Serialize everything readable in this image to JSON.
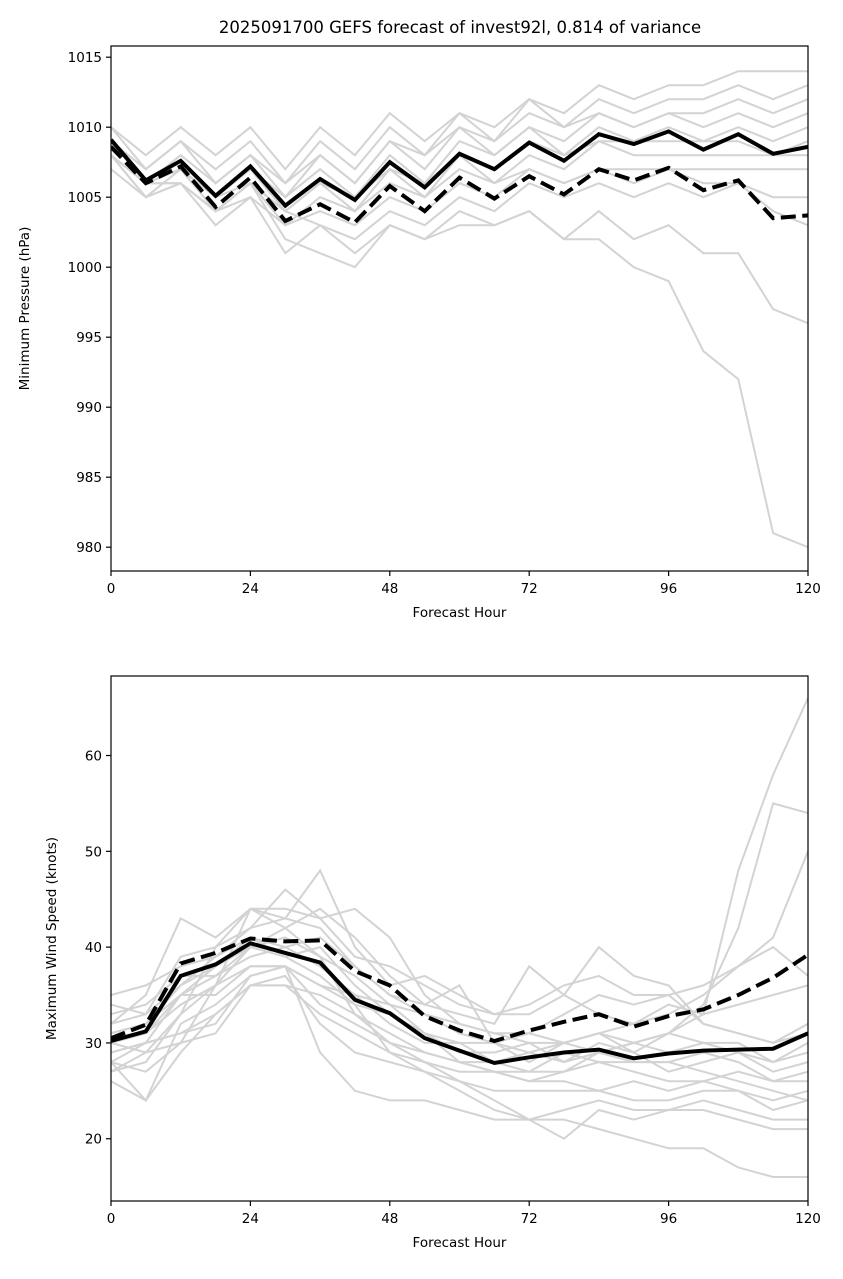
{
  "chart_data": [
    {
      "type": "line",
      "title": "2025091700 GEFS forecast of invest92l, 0.814 of variance",
      "xlabel": "Forecast Hour",
      "ylabel": "Minimum Pressure (hPa)",
      "xlim": [
        0,
        120
      ],
      "ylim": [
        978.3,
        1015.8
      ],
      "xticks": [
        0,
        24,
        48,
        72,
        96,
        120
      ],
      "yticks": [
        980,
        985,
        990,
        995,
        1000,
        1005,
        1010,
        1015
      ],
      "x": [
        0,
        6,
        12,
        18,
        24,
        30,
        36,
        42,
        48,
        54,
        60,
        66,
        72,
        78,
        84,
        90,
        96,
        102,
        108,
        114,
        120
      ],
      "grid": false,
      "legend": "none",
      "colors": {
        "members": "#d3d3d3",
        "mean": "#000000",
        "weighted": "#000000"
      },
      "series": [
        {
          "name": "member-01",
          "role": "member",
          "values": [
            1010,
            1008,
            1010,
            1008,
            1010,
            1007,
            1010,
            1008,
            1011,
            1009,
            1011,
            1010,
            1012,
            1011,
            1013,
            1012,
            1013,
            1013,
            1014,
            1014,
            1014
          ]
        },
        {
          "name": "member-02",
          "role": "member",
          "values": [
            1010,
            1007,
            1009,
            1007,
            1009,
            1006,
            1009,
            1007,
            1010,
            1008,
            1011,
            1009,
            1012,
            1010,
            1012,
            1011,
            1012,
            1012,
            1013,
            1012,
            1013
          ]
        },
        {
          "name": "member-03",
          "role": "member",
          "values": [
            1009,
            1007,
            1009,
            1006,
            1008,
            1006,
            1008,
            1006,
            1009,
            1008,
            1010,
            1009,
            1011,
            1010,
            1011,
            1010,
            1011,
            1011,
            1012,
            1011,
            1012
          ]
        },
        {
          "name": "member-04",
          "role": "member",
          "values": [
            1009,
            1006,
            1008,
            1006,
            1008,
            1005,
            1008,
            1006,
            1009,
            1007,
            1010,
            1008,
            1010,
            1009,
            1011,
            1010,
            1011,
            1010,
            1011,
            1010,
            1011
          ]
        },
        {
          "name": "member-05",
          "role": "member",
          "values": [
            1009,
            1006,
            1007,
            1005,
            1007,
            1005,
            1007,
            1005,
            1008,
            1006,
            1009,
            1008,
            1010,
            1008,
            1010,
            1009,
            1010,
            1009,
            1010,
            1009,
            1010
          ]
        },
        {
          "name": "member-06",
          "role": "member",
          "values": [
            1008,
            1006,
            1007,
            1005,
            1007,
            1004,
            1006,
            1005,
            1007,
            1006,
            1008,
            1007,
            1009,
            1008,
            1009,
            1009,
            1009,
            1009,
            1009,
            1008,
            1009
          ]
        },
        {
          "name": "member-07",
          "role": "member",
          "values": [
            1008,
            1005,
            1007,
            1004,
            1006,
            1004,
            1006,
            1004,
            1007,
            1005,
            1008,
            1006,
            1008,
            1007,
            1009,
            1008,
            1008,
            1008,
            1008,
            1008,
            1008
          ]
        },
        {
          "name": "member-08",
          "role": "member",
          "values": [
            1008,
            1005,
            1006,
            1004,
            1006,
            1003,
            1005,
            1004,
            1006,
            1005,
            1007,
            1006,
            1007,
            1006,
            1007,
            1007,
            1007,
            1007,
            1007,
            1007,
            1007
          ]
        },
        {
          "name": "member-09",
          "role": "member",
          "values": [
            1007,
            1005,
            1006,
            1003,
            1005,
            1003,
            1004,
            1003,
            1005,
            1004,
            1006,
            1005,
            1007,
            1006,
            1007,
            1006,
            1007,
            1006,
            1006,
            1005,
            1005
          ]
        },
        {
          "name": "member-10",
          "role": "member",
          "values": [
            1008,
            1006,
            1006,
            1004,
            1005,
            1001,
            1003,
            1002,
            1004,
            1003,
            1005,
            1004,
            1006,
            1005,
            1006,
            1005,
            1006,
            1005,
            1006,
            1004,
            1003
          ]
        },
        {
          "name": "member-11",
          "role": "member",
          "values": [
            1009,
            1006,
            1007,
            1005,
            1006,
            1004,
            1003,
            1001,
            1003,
            1002,
            1004,
            1003,
            1004,
            1002,
            1002,
            1000,
            999,
            994,
            992,
            981,
            980
          ]
        },
        {
          "name": "member-12",
          "role": "member",
          "values": [
            1008,
            1006,
            1006,
            1004,
            1006,
            1002,
            1001,
            1000,
            1003,
            1002,
            1003,
            1003,
            1004,
            1002,
            1004,
            1002,
            1003,
            1001,
            1001,
            997,
            996
          ]
        }
      ],
      "mean": {
        "name": "ensemble-mean",
        "style": "solid",
        "values": [
          1009.1,
          1006.2,
          1007.6,
          1005.1,
          1007.2,
          1004.4,
          1006.3,
          1004.8,
          1007.5,
          1005.7,
          1008.1,
          1007.0,
          1008.9,
          1007.6,
          1009.5,
          1008.8,
          1009.7,
          1008.4,
          1009.5,
          1008.1,
          1008.6
        ]
      },
      "weighted": {
        "name": "weighted-mean",
        "style": "dashed",
        "values": [
          1008.6,
          1006.0,
          1007.2,
          1004.3,
          1006.4,
          1003.3,
          1004.5,
          1003.2,
          1005.8,
          1004.0,
          1006.4,
          1004.9,
          1006.5,
          1005.2,
          1007.0,
          1006.2,
          1007.1,
          1005.5,
          1006.2,
          1003.5,
          1003.7
        ]
      }
    },
    {
      "type": "line",
      "title": "",
      "xlabel": "Forecast Hour",
      "ylabel": "Maximum Wind Speed (knots)",
      "xlim": [
        0,
        120
      ],
      "ylim": [
        13.5,
        68.3
      ],
      "xticks": [
        0,
        24,
        48,
        72,
        96,
        120
      ],
      "yticks": [
        20,
        30,
        40,
        50,
        60
      ],
      "x": [
        0,
        6,
        12,
        18,
        24,
        30,
        36,
        42,
        48,
        54,
        60,
        66,
        72,
        78,
        84,
        90,
        96,
        102,
        108,
        114,
        120
      ],
      "grid": false,
      "legend": "none",
      "colors": {
        "members": "#d3d3d3",
        "mean": "#000000",
        "weighted": "#000000"
      },
      "series": [
        {
          "name": "member-01",
          "role": "member",
          "values": [
            30,
            31,
            35,
            38,
            40,
            39,
            40,
            36,
            33,
            31,
            29,
            29,
            30,
            30,
            31,
            29,
            31,
            33,
            48,
            58,
            66
          ]
        },
        {
          "name": "member-02",
          "role": "member",
          "values": [
            31,
            32,
            36,
            39,
            41,
            40,
            38,
            35,
            32,
            30,
            30,
            30,
            31,
            30,
            29,
            30,
            31,
            34,
            42,
            55,
            54
          ]
        },
        {
          "name": "member-03",
          "role": "member",
          "values": [
            29,
            30,
            35,
            37,
            40,
            41,
            39,
            37,
            34,
            31,
            30,
            28,
            29,
            30,
            31,
            32,
            33,
            35,
            38,
            41,
            50
          ]
        },
        {
          "name": "member-04",
          "role": "member",
          "values": [
            34,
            33,
            39,
            40,
            42,
            43,
            42,
            38,
            35,
            33,
            32,
            31,
            31,
            33,
            35,
            34,
            35,
            36,
            38,
            40,
            37
          ]
        },
        {
          "name": "member-05",
          "role": "member",
          "values": [
            32,
            35,
            43,
            41,
            44,
            42,
            44,
            41,
            37,
            34,
            33,
            32,
            38,
            35,
            33,
            32,
            34,
            33,
            34,
            35,
            36
          ]
        },
        {
          "name": "member-06",
          "role": "member",
          "values": [
            35,
            36,
            38,
            39,
            42,
            46,
            43,
            39,
            38,
            36,
            34,
            33,
            33,
            35,
            40,
            37,
            36,
            32,
            31,
            30,
            32
          ]
        },
        {
          "name": "member-07",
          "role": "member",
          "values": [
            28,
            27,
            30,
            36,
            44,
            43,
            48,
            40,
            36,
            37,
            35,
            33,
            34,
            36,
            37,
            35,
            35,
            32,
            31,
            30,
            31
          ]
        },
        {
          "name": "member-08",
          "role": "member",
          "values": [
            27,
            28,
            33,
            40,
            44,
            44,
            43,
            44,
            41,
            35,
            32,
            31,
            30,
            28,
            29,
            30,
            31,
            30,
            30,
            28,
            30
          ]
        },
        {
          "name": "member-09",
          "role": "member",
          "values": [
            30,
            29,
            33,
            36,
            38,
            38,
            36,
            35,
            34,
            33,
            31,
            30,
            28,
            30,
            31,
            30,
            29,
            30,
            29,
            28,
            29
          ]
        },
        {
          "name": "member-10",
          "role": "member",
          "values": [
            33,
            34,
            37,
            37,
            39,
            40,
            41,
            38,
            35,
            34,
            36,
            30,
            29,
            28,
            30,
            29,
            27,
            28,
            29,
            27,
            28
          ]
        },
        {
          "name": "member-11",
          "role": "member",
          "values": [
            28,
            24,
            32,
            34,
            37,
            38,
            34,
            32,
            30,
            29,
            28,
            28,
            27,
            29,
            28,
            28,
            28,
            29,
            28,
            26,
            27
          ]
        },
        {
          "name": "member-12",
          "role": "member",
          "values": [
            26,
            24,
            29,
            33,
            36,
            36,
            35,
            33,
            31,
            29,
            28,
            27,
            27,
            27,
            28,
            27,
            26,
            26,
            27,
            26,
            26
          ]
        },
        {
          "name": "member-13",
          "role": "member",
          "values": [
            29,
            30,
            31,
            33,
            36,
            36,
            33,
            31,
            29,
            28,
            27,
            27,
            26,
            26,
            25,
            26,
            25,
            26,
            25,
            24,
            25
          ]
        },
        {
          "name": "member-14",
          "role": "member",
          "values": [
            27,
            29,
            30,
            31,
            36,
            37,
            32,
            29,
            28,
            27,
            26,
            25,
            25,
            25,
            25,
            24,
            24,
            25,
            25,
            23,
            24
          ]
        },
        {
          "name": "member-15",
          "role": "member",
          "values": [
            31,
            32,
            35,
            35,
            38,
            38,
            29,
            25,
            24,
            24,
            23,
            22,
            22,
            23,
            24,
            23,
            23,
            24,
            23,
            22,
            22
          ]
        },
        {
          "name": "member-16",
          "role": "member",
          "values": [
            28,
            30,
            31,
            32,
            37,
            38,
            36,
            34,
            29,
            27,
            25,
            23,
            22,
            22,
            21,
            20,
            19,
            19,
            17,
            16,
            16
          ]
        },
        {
          "name": "member-17",
          "role": "member",
          "values": [
            30,
            31,
            34,
            36,
            40,
            42,
            39,
            33,
            30,
            28,
            26,
            24,
            22,
            20,
            23,
            22,
            23,
            23,
            22,
            21,
            21
          ]
        },
        {
          "name": "member-18",
          "role": "member",
          "values": [
            32,
            33,
            36,
            38,
            41,
            39,
            37,
            34,
            33,
            31,
            28,
            27,
            26,
            27,
            29,
            28,
            28,
            27,
            26,
            25,
            24
          ]
        }
      ],
      "mean": {
        "name": "ensemble-mean",
        "style": "solid",
        "values": [
          30.2,
          31.2,
          37.0,
          38.2,
          40.4,
          39.4,
          38.4,
          34.5,
          33.1,
          30.5,
          29.2,
          27.9,
          28.5,
          29.0,
          29.3,
          28.4,
          28.9,
          29.2,
          29.3,
          29.4,
          31.0
        ]
      },
      "weighted": {
        "name": "weighted-mean",
        "style": "dashed",
        "values": [
          30.5,
          31.9,
          38.3,
          39.4,
          40.9,
          40.6,
          40.7,
          37.5,
          36.0,
          32.8,
          31.3,
          30.2,
          31.3,
          32.2,
          33.0,
          31.7,
          32.8,
          33.5,
          35.0,
          36.8,
          39.2
        ]
      }
    }
  ]
}
